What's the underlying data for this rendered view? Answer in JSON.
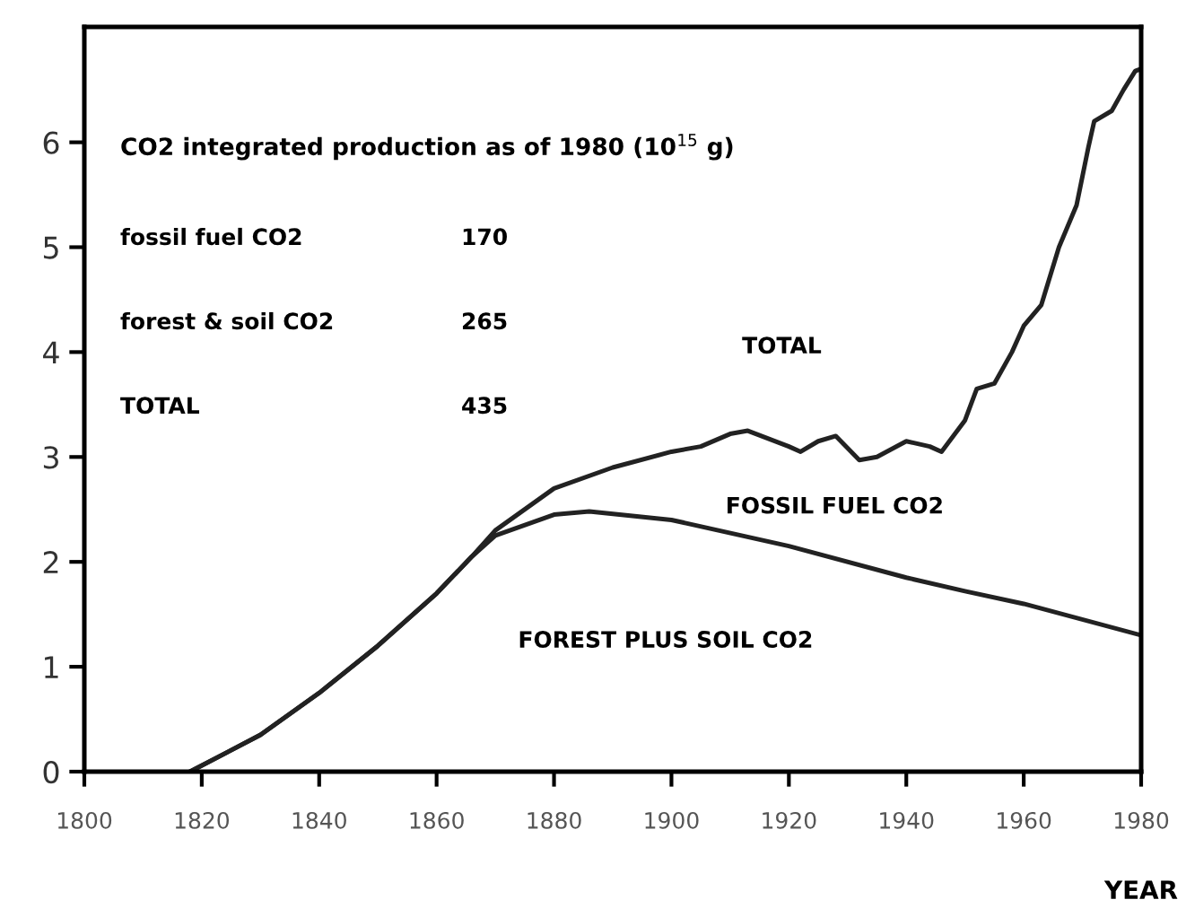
{
  "chart_data": {
    "type": "line",
    "xlabel": "YEAR",
    "xlim": [
      1800,
      1980
    ],
    "xticks": [
      1800,
      1820,
      1840,
      1860,
      1880,
      1900,
      1920,
      1940,
      1960,
      1980
    ],
    "ylim": [
      0,
      7.1
    ],
    "yticks": [
      0,
      1,
      2,
      3,
      4,
      5,
      6
    ],
    "grid": false,
    "legend": false,
    "marker": "none",
    "line_style": "solid",
    "series": [
      {
        "color": "#222222",
        "x": [
          1818,
          1830,
          1840,
          1850,
          1860,
          1866,
          1870,
          1880,
          1890,
          1900,
          1905,
          1910,
          1913,
          1920,
          1922,
          1925,
          1928,
          1932,
          1935,
          1940,
          1944,
          1946,
          1948,
          1950,
          1952,
          1955,
          1958,
          1960,
          1963,
          1966,
          1969,
          1971,
          1972,
          1975,
          1977,
          1979,
          1980
        ],
        "values": [
          0,
          0.35,
          0.75,
          1.2,
          1.7,
          2.05,
          2.3,
          2.7,
          2.9,
          3.05,
          3.1,
          3.22,
          3.25,
          3.1,
          3.05,
          3.15,
          3.2,
          2.97,
          3.0,
          3.15,
          3.1,
          3.05,
          3.2,
          3.35,
          3.65,
          3.7,
          4.0,
          4.25,
          4.45,
          5.0,
          5.4,
          5.95,
          6.2,
          6.3,
          6.5,
          6.68,
          6.7
        ]
      },
      {
        "color": "#222222",
        "x": [
          1818,
          1830,
          1840,
          1850,
          1860,
          1866,
          1870,
          1880,
          1886,
          1900,
          1920,
          1940,
          1950,
          1960,
          1980
        ],
        "values": [
          0,
          0.35,
          0.75,
          1.2,
          1.7,
          2.05,
          2.25,
          2.45,
          2.48,
          2.4,
          2.15,
          1.85,
          1.72,
          1.6,
          1.3
        ]
      }
    ],
    "annotations": [
      "TOTAL",
      "FOSSIL FUEL CO2",
      "FOREST PLUS SOIL CO2",
      "CO2 integrated production as of 1980 (10$^{15}$ g)",
      "fossil fuel CO2",
      "170",
      "forest & soil CO2",
      "265",
      "TOTAL",
      "435"
    ]
  }
}
